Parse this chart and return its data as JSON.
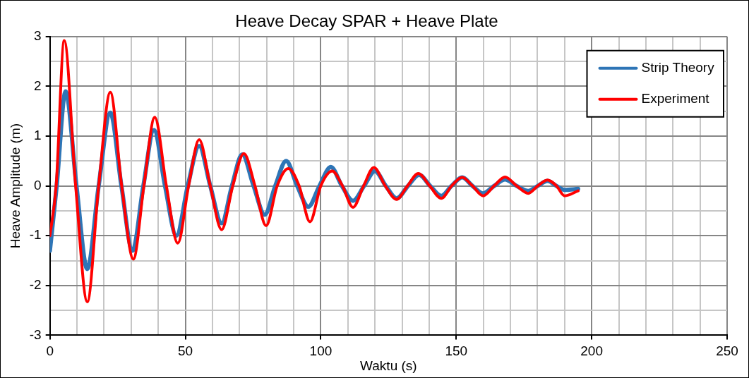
{
  "chart_data": {
    "type": "line",
    "title": "Heave Decay SPAR + Heave Plate",
    "xlabel": "Waktu (s)",
    "ylabel": "Heave Amplitude (m)",
    "xlim": [
      0,
      250
    ],
    "ylim": [
      -3,
      3
    ],
    "xticks": [
      0,
      {
        "value": 10,
        "label": null
      },
      {
        "value": 20,
        "label": null
      },
      {
        "value": 30,
        "label": null
      },
      {
        "value": 40,
        "label": null
      },
      50,
      {
        "value": 60,
        "label": null
      },
      {
        "value": 70,
        "label": null
      },
      {
        "value": 80,
        "label": null
      },
      {
        "value": 90,
        "label": null
      },
      100,
      {
        "value": 110,
        "label": null
      },
      {
        "value": 120,
        "label": null
      },
      {
        "value": 130,
        "label": null
      },
      {
        "value": 140,
        "label": null
      },
      150,
      {
        "value": 160,
        "label": null
      },
      {
        "value": 170,
        "label": null
      },
      {
        "value": 180,
        "label": null
      },
      {
        "value": 190,
        "label": null
      },
      200,
      {
        "value": 210,
        "label": null
      },
      {
        "value": 220,
        "label": null
      },
      {
        "value": 230,
        "label": null
      },
      {
        "value": 240,
        "label": null
      },
      250
    ],
    "yticks": [
      -3,
      {
        "value": -2.5,
        "label": null
      },
      -2,
      {
        "value": -1.5,
        "label": null
      },
      -1,
      {
        "value": -0.5,
        "label": null
      },
      0,
      {
        "value": 0.5,
        "label": null
      },
      1,
      {
        "value": 1.5,
        "label": null
      },
      2,
      {
        "value": 2.5,
        "label": null
      },
      3
    ],
    "grid": true,
    "legend": "top right",
    "marker": "none",
    "line_style": "solid",
    "series": [
      {
        "name": "Strip Theory",
        "color": "#2e75b6",
        "x": [
          0,
          2.5,
          5.8,
          9.8,
          13.8,
          18,
          22.3,
          26.4,
          30.5,
          34.5,
          38.4,
          42.5,
          46.7,
          50.9,
          55.1,
          59.2,
          63.4,
          67.2,
          71,
          75.2,
          79.3,
          83.2,
          87.2,
          91.3,
          95.4,
          99.5,
          103.7,
          107.8,
          111.9,
          116,
          120,
          124,
          128,
          132.2,
          136.3,
          140.4,
          144.5,
          148.3,
          152.2,
          156,
          159.9,
          164,
          168,
          172.3,
          176.6,
          180.1,
          183.7,
          187,
          190,
          195
        ],
        "values": [
          -1.3,
          0,
          1.9,
          0,
          -1.67,
          0,
          1.47,
          0,
          -1.3,
          0,
          1.12,
          0,
          -1.0,
          0,
          0.8,
          0,
          -0.75,
          0,
          0.63,
          0,
          -0.58,
          0,
          0.5,
          0,
          -0.42,
          0,
          0.38,
          0,
          -0.3,
          0,
          0.3,
          0,
          -0.25,
          0,
          0.22,
          0,
          -0.2,
          0,
          0.17,
          0,
          -0.15,
          0,
          0.13,
          0,
          -0.1,
          0,
          0.1,
          0,
          -0.08,
          -0.06
        ]
      },
      {
        "name": "Experiment",
        "color": "#ff0000",
        "x": [
          0,
          2.3,
          5.3,
          9.5,
          13.8,
          18,
          22.3,
          26.5,
          30.8,
          34.7,
          38.7,
          43,
          47.2,
          51.2,
          55.1,
          59.2,
          63.4,
          67.5,
          71.6,
          75.7,
          79.8,
          83.9,
          88,
          92,
          96,
          100,
          104.2,
          108,
          111.9,
          115.8,
          119.6,
          123.8,
          128,
          132,
          136,
          140.2,
          144.5,
          148.3,
          152.2,
          156,
          159.9,
          164,
          168,
          172.3,
          176.6,
          180.1,
          183.7,
          187,
          190,
          195
        ],
        "values": [
          -1.0,
          0,
          2.92,
          0,
          -2.33,
          0,
          1.88,
          0,
          -1.47,
          0,
          1.38,
          0,
          -1.15,
          0,
          0.93,
          0,
          -0.88,
          0,
          0.65,
          0,
          -0.8,
          0,
          0.35,
          0,
          -0.72,
          0,
          0.3,
          0,
          -0.43,
          0,
          0.37,
          0,
          -0.27,
          0,
          0.25,
          0,
          -0.25,
          0,
          0.17,
          0,
          -0.2,
          0,
          0.18,
          0,
          -0.15,
          0,
          0.12,
          0,
          -0.2,
          -0.1
        ]
      }
    ]
  }
}
